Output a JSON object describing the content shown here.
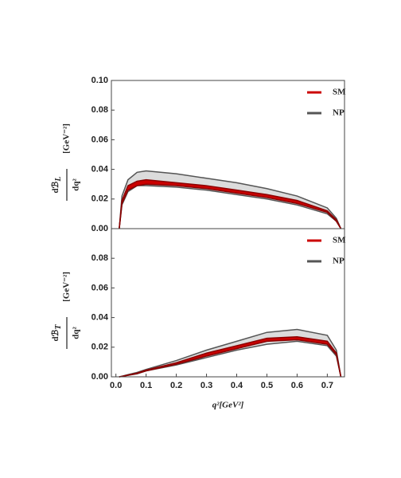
{
  "chart_data": [
    {
      "type": "band",
      "ylabel": {
        "numerator": "dℬ",
        "subscript": "L",
        "denominator": "dq²",
        "unit": "[GeV⁻²]"
      },
      "xlim": [
        -0.015,
        0.757
      ],
      "ylim": [
        0,
        0.1
      ],
      "yticks": [
        {
          "value": 0,
          "label": "0.00"
        },
        0.02,
        0.04,
        0.06,
        0.08,
        {
          "value": 0.1,
          "label": "0.10"
        }
      ],
      "x": [
        0.011,
        0.02,
        0.04,
        0.07,
        0.1,
        0.2,
        0.3,
        0.4,
        0.5,
        0.6,
        0.7,
        0.73,
        0.745
      ],
      "series": [
        {
          "name": "NP",
          "color": "#555555",
          "fill": "#dcdcdc",
          "high": [
            0,
            0.022,
            0.033,
            0.038,
            0.039,
            0.037,
            0.034,
            0.031,
            0.027,
            0.022,
            0.014,
            0.007,
            0
          ],
          "low": [
            0,
            0.016,
            0.025,
            0.029,
            0.029,
            0.028,
            0.026,
            0.023,
            0.02,
            0.016,
            0.01,
            0.005,
            0
          ]
        },
        {
          "name": "SM",
          "color": "#8b0000",
          "fill": "#cc0000",
          "high": [
            0,
            0.019,
            0.029,
            0.032,
            0.033,
            0.031,
            0.029,
            0.026,
            0.023,
            0.019,
            0.012,
            0.006,
            0
          ],
          "low": [
            0,
            0.017,
            0.026,
            0.029,
            0.03,
            0.029,
            0.027,
            0.024,
            0.021,
            0.017,
            0.011,
            0.005,
            0
          ]
        }
      ],
      "legend_order": [
        "SM",
        "NP"
      ]
    },
    {
      "type": "band",
      "ylabel": {
        "numerator": "dℬ",
        "subscript": "T",
        "denominator": "dq²",
        "unit": "[GeV⁻²]"
      },
      "xlabel": "q²[GeV²]",
      "xlim": [
        -0.015,
        0.757
      ],
      "ylim": [
        0,
        0.1
      ],
      "xticks": [
        {
          "value": 0,
          "label": "0.0"
        },
        0.1,
        0.2,
        0.3,
        0.4,
        0.5,
        0.6,
        0.7
      ],
      "yticks": [
        {
          "value": 0,
          "label": "0.00"
        },
        0.02,
        0.04,
        0.06,
        0.08
      ],
      "x": [
        0.011,
        0.02,
        0.04,
        0.07,
        0.1,
        0.2,
        0.3,
        0.4,
        0.5,
        0.6,
        0.7,
        0.73,
        0.745
      ],
      "series": [
        {
          "name": "NP",
          "color": "#555555",
          "fill": "#dcdcdc",
          "high": [
            0,
            0.0004,
            0.0015,
            0.003,
            0.005,
            0.011,
            0.018,
            0.024,
            0.03,
            0.032,
            0.028,
            0.018,
            0
          ],
          "low": [
            0,
            0.0003,
            0.001,
            0.002,
            0.004,
            0.008,
            0.013,
            0.018,
            0.022,
            0.024,
            0.021,
            0.014,
            0
          ]
        },
        {
          "name": "SM",
          "color": "#8b0000",
          "fill": "#cc0000",
          "high": [
            0,
            0.0003,
            0.0012,
            0.0025,
            0.0045,
            0.0095,
            0.016,
            0.021,
            0.026,
            0.027,
            0.024,
            0.016,
            0
          ],
          "low": [
            0,
            0.0003,
            0.0011,
            0.0022,
            0.004,
            0.0085,
            0.014,
            0.019,
            0.024,
            0.025,
            0.022,
            0.015,
            0
          ]
        }
      ],
      "legend_order": [
        "SM",
        "NP"
      ]
    }
  ]
}
